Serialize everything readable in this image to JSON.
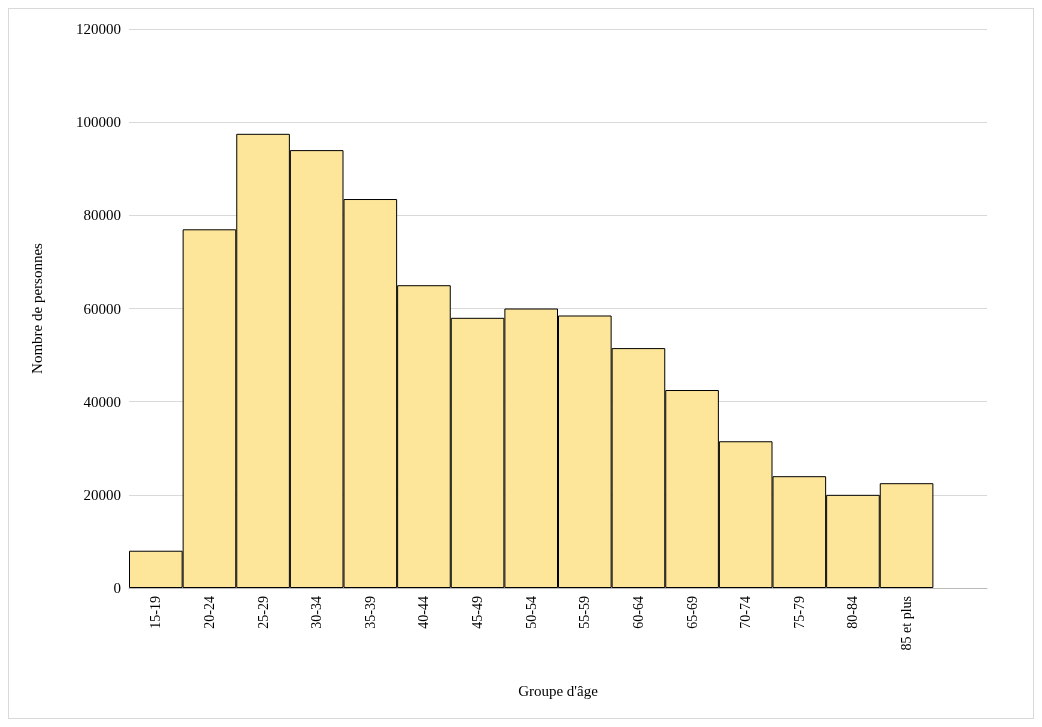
{
  "chart_data": {
    "type": "bar",
    "xlabel": "Groupe d'âge",
    "ylabel": "Nombre de personnes",
    "categories": [
      "15-19",
      "20-24",
      "25-29",
      "30-34",
      "35-39",
      "40-44",
      "45-49",
      "50-54",
      "55-59",
      "60-64",
      "65-69",
      "70-74",
      "75-79",
      "80-84",
      "85 et plus",
      null
    ],
    "series": [
      {
        "color": "#fde699",
        "values": [
          8000,
          77000,
          97500,
          94000,
          83500,
          65000,
          58000,
          60000,
          58500,
          51500,
          42500,
          31500,
          24000,
          20000,
          22500,
          null
        ]
      }
    ],
    "ylim": [
      0,
      120000
    ],
    "yticks": [
      0,
      20000,
      40000,
      60000,
      80000,
      100000,
      120000
    ],
    "grid": "y"
  }
}
